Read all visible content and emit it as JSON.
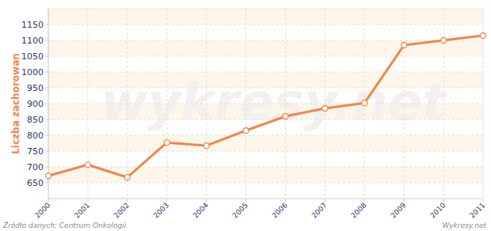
{
  "chart_data": {
    "type": "line",
    "y_label": "Liczba zachorowan",
    "annotations": [
      "wykresy.net",
      "Źródło danych: Centrum Onkologii",
      "Wykresy.net"
    ],
    "x": [
      2000,
      2001,
      2002,
      2003,
      2004,
      2005,
      2006,
      2007,
      2008,
      2009,
      2010,
      2011
    ],
    "values": [
      672,
      707,
      667,
      777,
      767,
      815,
      860,
      885,
      902,
      1085,
      1100,
      1115
    ],
    "color": "#f4844c",
    "marker": "circle",
    "xlim": [
      2000,
      2011
    ],
    "xticks": [
      2000,
      2001,
      2002,
      2003,
      2004,
      2005,
      2006,
      2007,
      2008,
      2009,
      2010,
      2011
    ],
    "ylim": [
      600,
      1200
    ],
    "yticks": [
      650,
      700,
      750,
      800,
      850,
      900,
      950,
      1000,
      1050,
      1100,
      1150
    ],
    "grid": true
  }
}
